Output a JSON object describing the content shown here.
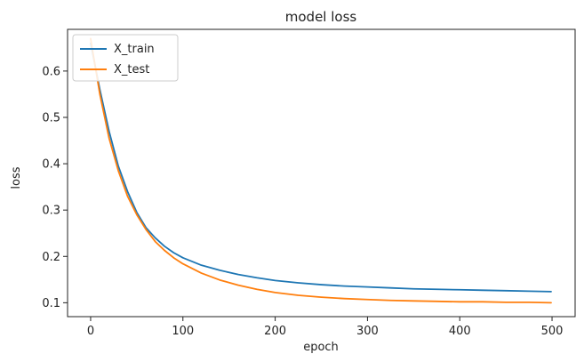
{
  "chart_data": {
    "type": "line",
    "title": "model loss",
    "xlabel": "epoch",
    "ylabel": "loss",
    "xlim": [
      -25,
      525
    ],
    "ylim": [
      0.07,
      0.69
    ],
    "xticks": [
      0,
      100,
      200,
      300,
      400,
      500
    ],
    "yticks": [
      0.1,
      0.2,
      0.3,
      0.4,
      0.5,
      0.6
    ],
    "grid": false,
    "legend_position": "top-left",
    "series": [
      {
        "name": "X_train",
        "color": "#1f77b4",
        "x": [
          0,
          10,
          20,
          30,
          40,
          50,
          60,
          70,
          80,
          90,
          100,
          120,
          140,
          160,
          180,
          200,
          225,
          250,
          275,
          300,
          325,
          350,
          375,
          400,
          425,
          450,
          475,
          499
        ],
        "y": [
          0.66,
          0.56,
          0.47,
          0.395,
          0.34,
          0.295,
          0.262,
          0.24,
          0.222,
          0.208,
          0.197,
          0.181,
          0.17,
          0.161,
          0.154,
          0.148,
          0.143,
          0.139,
          0.136,
          0.134,
          0.132,
          0.13,
          0.129,
          0.128,
          0.127,
          0.126,
          0.125,
          0.124
        ]
      },
      {
        "name": "X_test",
        "color": "#ff7f0e",
        "x": [
          0,
          10,
          20,
          30,
          40,
          50,
          60,
          70,
          80,
          90,
          100,
          120,
          140,
          160,
          180,
          200,
          225,
          250,
          275,
          300,
          325,
          350,
          375,
          400,
          425,
          450,
          475,
          499
        ],
        "y": [
          0.67,
          0.55,
          0.455,
          0.385,
          0.33,
          0.29,
          0.258,
          0.232,
          0.213,
          0.197,
          0.184,
          0.164,
          0.149,
          0.138,
          0.129,
          0.122,
          0.116,
          0.112,
          0.109,
          0.107,
          0.105,
          0.104,
          0.103,
          0.102,
          0.102,
          0.101,
          0.101,
          0.1
        ]
      }
    ]
  }
}
